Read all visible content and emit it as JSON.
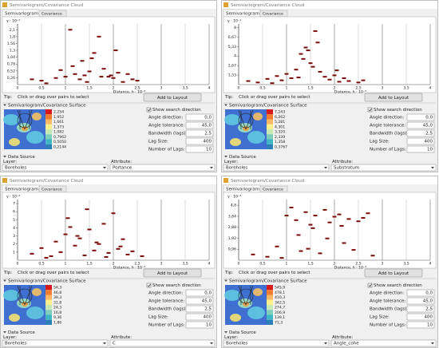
{
  "panels": [
    {
      "window_title": "Semivariogram/Covariance Cloud",
      "tabs": [
        "Semivariogram",
        "Covariance"
      ],
      "chart": {
        "type": "scatter",
        "y_label": "γ · 10⁻¹",
        "x_label": "Distance, h · 10⁻⁵",
        "color": "#7a0c0c",
        "xlim": [
          0,
          4
        ],
        "xticks": [
          0,
          {
            "value": 0.5,
            "label": "0,5"
          },
          1,
          {
            "value": 1.5,
            "label": "1,5"
          },
          2,
          {
            "value": 2.5,
            "label": "2,5"
          },
          3,
          {
            "value": 3.5,
            "label": "3,5"
          },
          4
        ],
        "ylim": [
          0,
          2.3
        ],
        "yticks": [
          {
            "value": 0.26,
            "label": "0,26"
          },
          {
            "value": 0.52,
            "label": "0,52"
          },
          {
            "value": 0.78,
            "label": "0,78"
          },
          {
            "value": 1.04,
            "label": "1,04"
          },
          {
            "value": 1.3,
            "label": "1,3"
          },
          {
            "value": 1.56,
            "label": "1,56"
          },
          {
            "value": 1.82,
            "label": "1,8"
          },
          {
            "value": 2.08,
            "label": "2,1"
          }
        ],
        "x": [
          0.3,
          0.5,
          0.8,
          1.0,
          1.1,
          1.2,
          1.3,
          1.4,
          1.5,
          1.6,
          1.7,
          1.8,
          1.9,
          2.0,
          2.1,
          2.2,
          2.4,
          2.5,
          0.9,
          1.15,
          1.75,
          1.55,
          2.05,
          1.35,
          0.6,
          1.95,
          2.3,
          1.45
        ],
        "y": [
          0.2,
          0.15,
          0.25,
          0.3,
          2.08,
          0.4,
          0.2,
          0.35,
          0.5,
          1.2,
          1.82,
          0.6,
          0.3,
          0.25,
          0.45,
          0.1,
          0.2,
          0.15,
          0.55,
          0.7,
          0.3,
          1.0,
          1.3,
          0.9,
          0.05,
          0.35,
          0.4,
          0.1
        ]
      },
      "tip_label": "Tip:",
      "tip": "Click or drag over pairs to select",
      "button": "Add to Layout",
      "surface_title": "Semivariogram/Covariance Surface",
      "legend": [
        "2,254",
        "1,952",
        "1,661",
        "1,373",
        "1,082",
        "0,7962",
        "0,5050",
        "0,2144"
      ],
      "checkbox": "Show search direction",
      "fields": [
        {
          "label": "Angle direction:",
          "value": "0,0"
        },
        {
          "label": "Angle tolerance:",
          "value": "45,0"
        },
        {
          "label": "Bandwidth (lags):",
          "value": "2,5"
        },
        {
          "label": "Lag Size:",
          "value": "400"
        },
        {
          "label": "Number of Lags:",
          "value": "10"
        }
      ],
      "data_source": "Data Source",
      "layer_label": "Layer:",
      "layer": "Boreholes",
      "attribute_label": "Attribute:",
      "attribute": "Portance"
    },
    {
      "window_title": "Semivariogram/Covariance Cloud",
      "tabs": [
        "Semivariogram",
        "Covariance"
      ],
      "chart": {
        "type": "scatter",
        "y_label": "γ · 10⁻¹",
        "x_label": "Distance, h · 10⁻⁵",
        "color": "#7a0c0c",
        "xlim": [
          0,
          4
        ],
        "xticks": [
          0,
          {
            "value": 0.5,
            "label": "0,5"
          },
          1,
          {
            "value": 1.5,
            "label": "1,5"
          },
          2,
          {
            "value": 2.5,
            "label": "2,5"
          },
          3,
          {
            "value": 3.5,
            "label": "3,5"
          },
          4
        ],
        "ylim": [
          0,
          8.5
        ],
        "yticks": [
          {
            "value": 1.33,
            "label": "1,33"
          },
          {
            "value": 2.67,
            "label": "2,67"
          },
          4,
          {
            "value": 5.33,
            "label": "5,33"
          },
          {
            "value": 6.67,
            "label": "6,67"
          },
          8
        ],
        "x": [
          0.2,
          0.4,
          0.6,
          0.8,
          0.9,
          1.0,
          1.1,
          1.2,
          1.3,
          1.4,
          1.5,
          1.6,
          1.7,
          1.8,
          1.9,
          2.0,
          2.1,
          2.2,
          2.3,
          2.5,
          2.6,
          1.45,
          1.55,
          1.35,
          1.65,
          1.25,
          2.05,
          0.7
        ],
        "y": [
          0.5,
          0.3,
          0.8,
          1.2,
          0.6,
          1.5,
          0.9,
          2.1,
          4.3,
          5.2,
          3.0,
          7.5,
          1.8,
          1.1,
          0.7,
          1.3,
          0.4,
          0.9,
          0.5,
          0.3,
          0.6,
          4.8,
          2.5,
          3.6,
          5.9,
          1.0,
          2.0,
          0.2
        ]
      },
      "tip_label": "Tip:",
      "tip": "Click or drag over pairs to select",
      "button": "Add to Layout",
      "surface_title": "Semivariogram/Covariance Surface",
      "legend": [
        "7,243",
        "6,262",
        "5,281",
        "4,301",
        "3,320",
        "2,339",
        "1,358",
        "0,3767"
      ],
      "checkbox": "Show search direction",
      "fields": [
        {
          "label": "Angle direction:",
          "value": "0,0"
        },
        {
          "label": "Angle tolerance:",
          "value": "45,0"
        },
        {
          "label": "Bandwidth (lags):",
          "value": "2,5"
        },
        {
          "label": "Lag Size:",
          "value": "400"
        },
        {
          "label": "Number of Lags:",
          "value": "10"
        }
      ],
      "data_source": "Data Source",
      "layer_label": "Layer:",
      "layer": "Boreholes",
      "attribute_label": "Attribute:",
      "attribute": "Substratum"
    },
    {
      "window_title": "Semivariogram/Covariance Cloud",
      "tabs": [
        "Semivariogram",
        "Covariance"
      ],
      "chart": {
        "type": "scatter",
        "y_label": "γ · 10⁻³",
        "x_label": "Distance, h · 10⁻⁵",
        "color": "#7a0c0c",
        "xlim": [
          0,
          4
        ],
        "xticks": [
          0,
          {
            "value": 0.5,
            "label": "0,5"
          },
          1,
          {
            "value": 1.5,
            "label": "1,5"
          },
          2,
          {
            "value": 2.5,
            "label": "2,5"
          },
          3,
          {
            "value": 3.5,
            "label": "3,5"
          },
          4
        ],
        "ylim": [
          0,
          7.5
        ],
        "yticks": [
          1,
          2,
          3,
          4,
          5,
          6,
          7
        ],
        "x": [
          0.3,
          0.5,
          0.7,
          0.8,
          0.9,
          1.0,
          1.1,
          1.2,
          1.3,
          1.4,
          1.5,
          1.6,
          1.7,
          1.8,
          1.9,
          2.0,
          2.1,
          2.2,
          2.3,
          2.4,
          2.6,
          1.05,
          1.25,
          1.45,
          0.6,
          1.65,
          2.15,
          1.85
        ],
        "y": [
          0.8,
          1.5,
          0.5,
          2.3,
          1.0,
          3.2,
          4.1,
          1.8,
          2.7,
          0.6,
          3.8,
          1.2,
          2.0,
          4.5,
          0.9,
          5.8,
          1.4,
          2.6,
          0.7,
          1.1,
          0.5,
          5.2,
          3.0,
          6.3,
          0.3,
          2.2,
          1.7,
          0.4
        ]
      },
      "tip_label": "Tip:",
      "tip": "Click or drag over pairs to select",
      "button": "Add to Layout",
      "surface_title": "Semivariogram/Covariance Surface",
      "legend": [
        "54,3",
        "46,8",
        "39,3",
        "31,8",
        "24,3",
        "16,8",
        "9,36",
        "1,86"
      ],
      "checkbox": "Show search direction",
      "fields": [
        {
          "label": "Angle direction:",
          "value": "0,0"
        },
        {
          "label": "Angle tolerance:",
          "value": "45,0"
        },
        {
          "label": "Bandwidth (lags):",
          "value": "2,5"
        },
        {
          "label": "Lag Size:",
          "value": "400"
        },
        {
          "label": "Number of Lags:",
          "value": "10"
        }
      ],
      "data_source": "Data Source",
      "layer_label": "Layer:",
      "layer": "Boreholes",
      "attribute_label": "Attribute:",
      "attribute": "C"
    },
    {
      "window_title": "Semivariogram/Covariance Cloud",
      "tabs": [
        "Semivariogram",
        "Covariance"
      ],
      "chart": {
        "type": "scatter",
        "y_label": "γ · 10⁻³",
        "x_label": "Distance, h · 10⁻⁵",
        "color": "#7a0c0c",
        "xlim": [
          0,
          4
        ],
        "xticks": [
          0,
          {
            "value": 0.5,
            "label": "0,5"
          },
          1,
          {
            "value": 1.5,
            "label": "1,5"
          },
          2,
          {
            "value": 2.5,
            "label": "2,5"
          },
          3,
          {
            "value": 3.5,
            "label": "3,5"
          },
          4
        ],
        "ylim": [
          0,
          5.3
        ],
        "yticks": [
          {
            "value": 0.96,
            "label": "0,96"
          },
          {
            "value": 1.92,
            "label": "1,92"
          },
          {
            "value": 2.88,
            "label": "2,88"
          },
          {
            "value": 3.84,
            "label": "3,84"
          },
          {
            "value": 4.8,
            "label": "4,8"
          }
        ],
        "x": [
          0.3,
          0.6,
          0.8,
          1.0,
          1.1,
          1.2,
          1.3,
          1.4,
          1.5,
          1.6,
          1.7,
          1.8,
          1.9,
          2.0,
          2.1,
          2.2,
          2.3,
          2.4,
          2.5,
          2.7,
          2.8,
          1.25,
          1.55,
          1.85,
          2.15,
          0.9,
          1.45,
          2.6
        ],
        "y": [
          0.5,
          0.3,
          1.2,
          3.9,
          4.6,
          3.5,
          0.8,
          4.2,
          3.1,
          3.9,
          0.6,
          4.4,
          3.3,
          3.8,
          4.0,
          1.5,
          3.6,
          0.9,
          3.4,
          4.1,
          0.4,
          2.2,
          2.8,
          1.9,
          3.0,
          0.2,
          1.0,
          3.7
        ]
      },
      "tip_label": "Tip:",
      "tip": "Click or drag over pairs to select",
      "button": "Add to Layout",
      "surface_title": "Semivariogram/Covariance Surface",
      "legend": [
        "545,9",
        "478,1",
        "410,3",
        "342,5",
        "274,7",
        "206,9",
        "139,1",
        "71,3"
      ],
      "checkbox": "Show search direction",
      "fields": [
        {
          "label": "Angle direction:",
          "value": "0,0"
        },
        {
          "label": "Angle tolerance:",
          "value": "45,0"
        },
        {
          "label": "Bandwidth (lags):",
          "value": "2,5"
        },
        {
          "label": "Lag Size:",
          "value": "400"
        },
        {
          "label": "Number of Lags:",
          "value": "10"
        }
      ],
      "data_source": "Data Source",
      "layer_label": "Layer:",
      "layer": "Boreholes",
      "attribute_label": "Attribute:",
      "attribute": "Angle_cohe"
    }
  ]
}
